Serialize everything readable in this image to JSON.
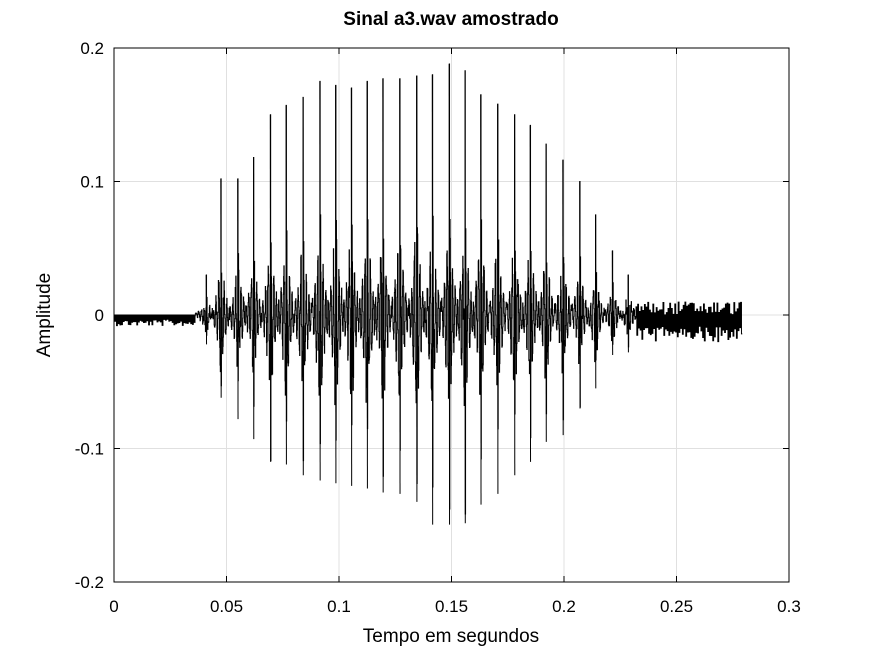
{
  "chart_data": {
    "type": "line",
    "title": "Sinal a3.wav amostrado",
    "xlabel": "Tempo em segundos",
    "ylabel": "Amplitude",
    "xlim": [
      0,
      0.3
    ],
    "ylim": [
      -0.2,
      0.2
    ],
    "grid": true,
    "legend": "none",
    "colors": {
      "line": "#000000",
      "grid": "#e0e0e0",
      "background": "#ffffff"
    },
    "xticks": [
      {
        "value": 0,
        "label": "0"
      },
      {
        "value": 0.05,
        "label": "0.05"
      },
      {
        "value": 0.1,
        "label": "0.1"
      },
      {
        "value": 0.15,
        "label": "0.15"
      },
      {
        "value": 0.2,
        "label": "0.2"
      },
      {
        "value": 0.25,
        "label": "0.25"
      },
      {
        "value": 0.3,
        "label": "0.3"
      }
    ],
    "yticks": [
      {
        "value": -0.2,
        "label": "-0.2"
      },
      {
        "value": -0.1,
        "label": "-0.1"
      },
      {
        "value": 0,
        "label": "0"
      },
      {
        "value": 0.1,
        "label": "0.1"
      },
      {
        "value": 0.2,
        "label": "0.2"
      }
    ],
    "series": [
      {
        "x_range": [
          0,
          0.279
        ],
        "segments": [
          {
            "x_start": 0,
            "x_end": 0.036,
            "pattern": "baseline_noise",
            "min": -0.008,
            "max": 0.0
          },
          {
            "x_start": 0.036,
            "x_end": 0.232,
            "pattern": "pulses",
            "period": 0.00725
          },
          {
            "x_start": 0.232,
            "x_end": 0.279,
            "pattern": "tail_noise",
            "min": -0.02,
            "max": 0.01
          }
        ],
        "pulse_peaks": [
          {
            "x": 0.041,
            "max": 0.03,
            "min": -0.022
          },
          {
            "x": 0.0475,
            "max": 0.102,
            "min": -0.062
          },
          {
            "x": 0.055,
            "max": 0.102,
            "min": -0.078
          },
          {
            "x": 0.062,
            "max": 0.118,
            "min": -0.093
          },
          {
            "x": 0.0695,
            "max": 0.15,
            "min": -0.11
          },
          {
            "x": 0.0765,
            "max": 0.157,
            "min": -0.112
          },
          {
            "x": 0.084,
            "max": 0.163,
            "min": -0.12
          },
          {
            "x": 0.0915,
            "max": 0.175,
            "min": -0.124
          },
          {
            "x": 0.0985,
            "max": 0.172,
            "min": -0.126
          },
          {
            "x": 0.1055,
            "max": 0.17,
            "min": -0.128
          },
          {
            "x": 0.1125,
            "max": 0.175,
            "min": -0.13
          },
          {
            "x": 0.1195,
            "max": 0.177,
            "min": -0.133
          },
          {
            "x": 0.127,
            "max": 0.177,
            "min": -0.134
          },
          {
            "x": 0.1345,
            "max": 0.179,
            "min": -0.14
          },
          {
            "x": 0.1415,
            "max": 0.18,
            "min": -0.157
          },
          {
            "x": 0.149,
            "max": 0.188,
            "min": -0.157
          },
          {
            "x": 0.156,
            "max": 0.183,
            "min": -0.156
          },
          {
            "x": 0.163,
            "max": 0.165,
            "min": -0.142
          },
          {
            "x": 0.1705,
            "max": 0.158,
            "min": -0.134
          },
          {
            "x": 0.178,
            "max": 0.15,
            "min": -0.12
          },
          {
            "x": 0.185,
            "max": 0.142,
            "min": -0.11
          },
          {
            "x": 0.192,
            "max": 0.128,
            "min": -0.095
          },
          {
            "x": 0.1995,
            "max": 0.116,
            "min": -0.09
          },
          {
            "x": 0.207,
            "max": 0.1,
            "min": -0.07
          },
          {
            "x": 0.214,
            "max": 0.075,
            "min": -0.055
          },
          {
            "x": 0.2215,
            "max": 0.048,
            "min": -0.03
          },
          {
            "x": 0.2285,
            "max": 0.03,
            "min": -0.028
          }
        ]
      }
    ]
  }
}
